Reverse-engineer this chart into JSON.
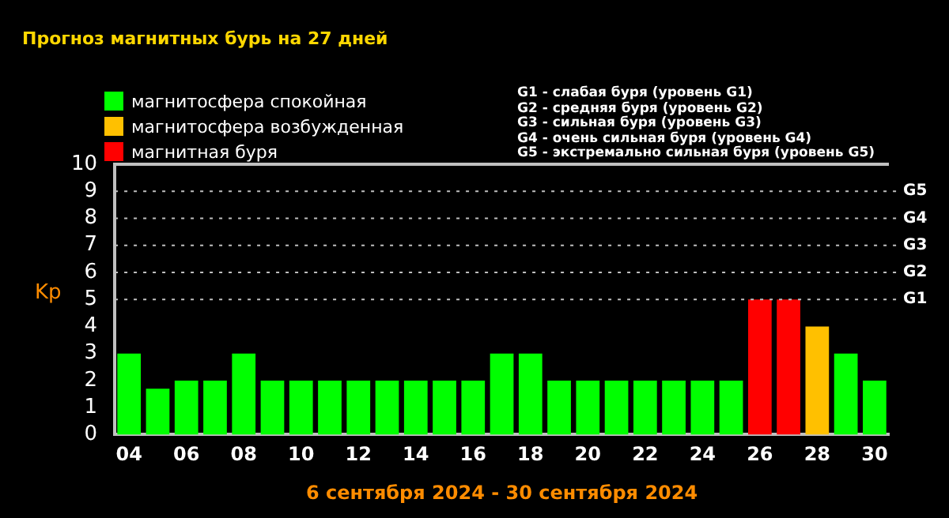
{
  "chart_data": {
    "type": "bar",
    "title": "Прогноз магнитных бурь на 27 дней",
    "xlabel": "6 сентября 2024 - 30 сентября 2024",
    "ylabel": "Kp",
    "categories": [
      "04",
      null,
      "06",
      null,
      "08",
      null,
      "10",
      null,
      "12",
      null,
      "14",
      null,
      "16",
      null,
      "18",
      null,
      "20",
      null,
      "22",
      null,
      "24",
      null,
      "26",
      null,
      "28",
      null,
      "30"
    ],
    "series": [
      {
        "name": "магнитосфера спокойная",
        "color": "#00ff00",
        "values": [
          3,
          1.7,
          2,
          2,
          3,
          2,
          2,
          2,
          2,
          2,
          2,
          2,
          2,
          3,
          3,
          2,
          2,
          2,
          2,
          2,
          2,
          2,
          null,
          null,
          null,
          3,
          2
        ]
      },
      {
        "name": "магнитосфера возбужденная",
        "color": "#ffc000",
        "values": [
          null,
          null,
          null,
          null,
          null,
          null,
          null,
          null,
          null,
          null,
          null,
          null,
          null,
          null,
          null,
          null,
          null,
          null,
          null,
          null,
          null,
          null,
          null,
          null,
          4,
          null,
          null
        ]
      },
      {
        "name": "магнитная буря",
        "color": "#ff0000",
        "values": [
          null,
          null,
          null,
          null,
          null,
          null,
          null,
          null,
          null,
          null,
          null,
          null,
          null,
          null,
          null,
          null,
          null,
          null,
          null,
          null,
          null,
          null,
          5,
          5,
          null,
          null,
          null
        ]
      }
    ],
    "stacked": true,
    "ylim": [
      0,
      10
    ],
    "yticks": [
      0,
      1,
      2,
      3,
      4,
      5,
      6,
      7,
      8,
      9,
      10
    ],
    "ref_lines": [
      {
        "axis": "y",
        "value": 5,
        "label": "G1",
        "line_style": "dotted"
      },
      {
        "axis": "y",
        "value": 6,
        "label": "G2",
        "line_style": "dotted"
      },
      {
        "axis": "y",
        "value": 7,
        "label": "G3",
        "line_style": "dotted"
      },
      {
        "axis": "y",
        "value": 8,
        "label": "G4",
        "line_style": "dotted"
      },
      {
        "axis": "y",
        "value": 9,
        "label": "G5",
        "line_style": "dotted"
      }
    ],
    "legend": "top left",
    "annotations": [
      "G1 - слабая буря (уровень G1)",
      "G2 - средняя буря (уровень G2)",
      "G3 - сильная буря (уровень G3)",
      "G4 - очень сильная буря (уровень G4)",
      "G5 - экстремально сильная буря (уровень G5)"
    ]
  }
}
